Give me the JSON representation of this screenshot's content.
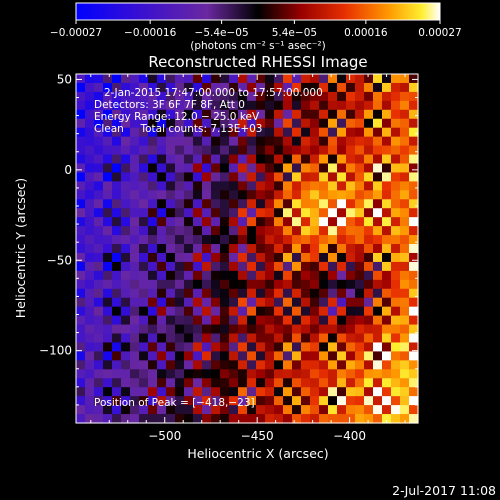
{
  "chart_data": {
    "type": "heatmap",
    "title": "Reconstructed RHESSI Image",
    "xlabel": "Heliocentric X (arcsec)",
    "ylabel": "Heliocentric Y (arcsec)",
    "xlim": [
      -548,
      -363
    ],
    "ylim": [
      -140,
      53
    ],
    "xticks": [
      {
        "v": -500,
        "label": "−500"
      },
      {
        "v": -450,
        "label": "−450"
      },
      {
        "v": -400,
        "label": "−400"
      }
    ],
    "yticks": [
      {
        "v": 50,
        "label": "50"
      },
      {
        "v": 0,
        "label": "0"
      },
      {
        "v": -50,
        "label": "−50"
      },
      {
        "v": -100,
        "label": "−100"
      }
    ],
    "colorbar": {
      "range": [
        -0.00027,
        0.00027
      ],
      "ticks": [
        {
          "v": -0.00027,
          "label": "−0.00027"
        },
        {
          "v": -0.00016,
          "label": "−0.00016"
        },
        {
          "v": -5.4e-05,
          "label": "−5.4e−05"
        },
        {
          "v": 5.4e-05,
          "label": "5.4e−05"
        },
        {
          "v": 0.00016,
          "label": "0.00016"
        },
        {
          "v": 0.00027,
          "label": "0.00027"
        }
      ],
      "unit_label": "(photons cm⁻² s⁻¹ asec⁻²)",
      "colors": [
        "#0000ff",
        "#4a00c0",
        "#6e2aa0",
        "#000000",
        "#900000",
        "#e02000",
        "#ff8000",
        "#ffe000",
        "#ffffff"
      ]
    },
    "info_lines": [
      "2‑Jan‑2015 17:47:00.000 to 17:57:00.000",
      "Detectors: 3F 6F 7F 8F, Att 0",
      "Energy Range: 12.0 − 25.0 keV",
      "Clean     Total counts: 7.13E+03"
    ],
    "peak_label": "Position of Peak = [−418,−23]",
    "peak": [
      -418,
      -23
    ],
    "datestamp": "2‑Jul‑2017 11:08"
  }
}
